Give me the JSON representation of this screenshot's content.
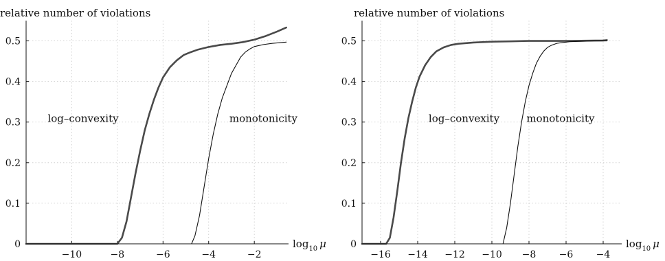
{
  "colors": {
    "thick_curve": "#4a4a4a",
    "thin_curve": "#111111",
    "grid": "#c8c8c8",
    "axis": "#111111"
  },
  "chart_data": [
    {
      "type": "line",
      "ylabel": "relative number of violations",
      "xlabel": "log₁₀ μ",
      "xlabel_base": "log",
      "xlabel_sub": "10",
      "xlabel_var": "μ",
      "xlim": [
        -12,
        -0.5
      ],
      "ylim": [
        0,
        0.55
      ],
      "xticks": [
        -10,
        -8,
        -6,
        -4,
        -2
      ],
      "xtick_labels": [
        "−10",
        "−8",
        "−6",
        "−4",
        "−2"
      ],
      "yticks": [
        0,
        0.1,
        0.2,
        0.3,
        0.4,
        0.5
      ],
      "ytick_labels": [
        "0",
        "0.1",
        "0.2",
        "0.3",
        "0.4",
        "0.5"
      ],
      "grid": true,
      "annotations": [
        {
          "text": "log–convexity",
          "x": -9.5,
          "y": 0.25
        },
        {
          "text": "monotonicity",
          "x": -1.6,
          "y": 0.25
        }
      ],
      "series": [
        {
          "style": "thick",
          "x": [
            -12,
            -8,
            -7.8,
            -7.6,
            -7.4,
            -7.2,
            -7.0,
            -6.8,
            -6.6,
            -6.4,
            -6.2,
            -6.0,
            -5.7,
            -5.4,
            -5.1,
            -4.8,
            -4.5,
            -4.0,
            -3.5,
            -3.0,
            -2.5,
            -2.0,
            -1.5,
            -1.0,
            -0.6
          ],
          "y": [
            0,
            0,
            0.015,
            0.055,
            0.115,
            0.175,
            0.23,
            0.28,
            0.32,
            0.355,
            0.385,
            0.41,
            0.435,
            0.452,
            0.465,
            0.472,
            0.478,
            0.485,
            0.49,
            0.493,
            0.497,
            0.503,
            0.512,
            0.523,
            0.533
          ]
        },
        {
          "style": "thin",
          "x": [
            -12,
            -4.75,
            -4.6,
            -4.4,
            -4.2,
            -4.0,
            -3.8,
            -3.6,
            -3.4,
            -3.2,
            -3.0,
            -2.8,
            -2.6,
            -2.4,
            -2.2,
            -2.0,
            -1.6,
            -1.2,
            -0.6
          ],
          "y": [
            0,
            0,
            0.02,
            0.07,
            0.14,
            0.21,
            0.27,
            0.32,
            0.36,
            0.39,
            0.42,
            0.44,
            0.46,
            0.472,
            0.48,
            0.486,
            0.491,
            0.494,
            0.497
          ]
        }
      ]
    },
    {
      "type": "line",
      "ylabel": "relative number of violations",
      "xlabel": "log₁₀ μ",
      "xlabel_base": "log",
      "xlabel_sub": "10",
      "xlabel_var": "μ",
      "xlim": [
        -17,
        -3
      ],
      "ylim": [
        0,
        0.55
      ],
      "xticks": [
        -16,
        -14,
        -12,
        -10,
        -8,
        -6,
        -4
      ],
      "xtick_labels": [
        "−16",
        "−14",
        "−12",
        "−10",
        "−8",
        "−6",
        "−4"
      ],
      "yticks": [
        0,
        0.1,
        0.2,
        0.3,
        0.4,
        0.5
      ],
      "ytick_labels": [
        "0",
        "0.1",
        "0.2",
        "0.3",
        "0.4",
        "0.5"
      ],
      "grid": true,
      "annotations": [
        {
          "text": "log–convexity",
          "x": -11.5,
          "y": 0.25
        },
        {
          "text": "monotonicity",
          "x": -6.3,
          "y": 0.25
        }
      ],
      "series": [
        {
          "style": "thick",
          "x": [
            -17,
            -15.7,
            -15.5,
            -15.3,
            -15.1,
            -14.9,
            -14.7,
            -14.5,
            -14.3,
            -14.1,
            -13.9,
            -13.6,
            -13.3,
            -13.0,
            -12.6,
            -12.2,
            -11.8,
            -11.0,
            -10.0,
            -9.0,
            -8.0,
            -6.0,
            -4.0,
            -3.8
          ],
          "y": [
            0,
            0,
            0.015,
            0.065,
            0.13,
            0.2,
            0.26,
            0.31,
            0.35,
            0.385,
            0.412,
            0.44,
            0.46,
            0.474,
            0.484,
            0.49,
            0.493,
            0.496,
            0.498,
            0.499,
            0.5,
            0.5,
            0.501,
            0.502
          ]
        },
        {
          "style": "thin",
          "x": [
            -17,
            -9.4,
            -9.2,
            -9.0,
            -8.8,
            -8.6,
            -8.4,
            -8.2,
            -8.0,
            -7.8,
            -7.6,
            -7.4,
            -7.2,
            -7.0,
            -6.8,
            -6.5,
            -6.2,
            -5.8,
            -5.2,
            -4.5,
            -3.8
          ],
          "y": [
            0,
            0,
            0.04,
            0.1,
            0.17,
            0.24,
            0.3,
            0.35,
            0.39,
            0.42,
            0.445,
            0.462,
            0.475,
            0.484,
            0.489,
            0.494,
            0.496,
            0.498,
            0.499,
            0.5,
            0.5
          ]
        }
      ]
    }
  ]
}
